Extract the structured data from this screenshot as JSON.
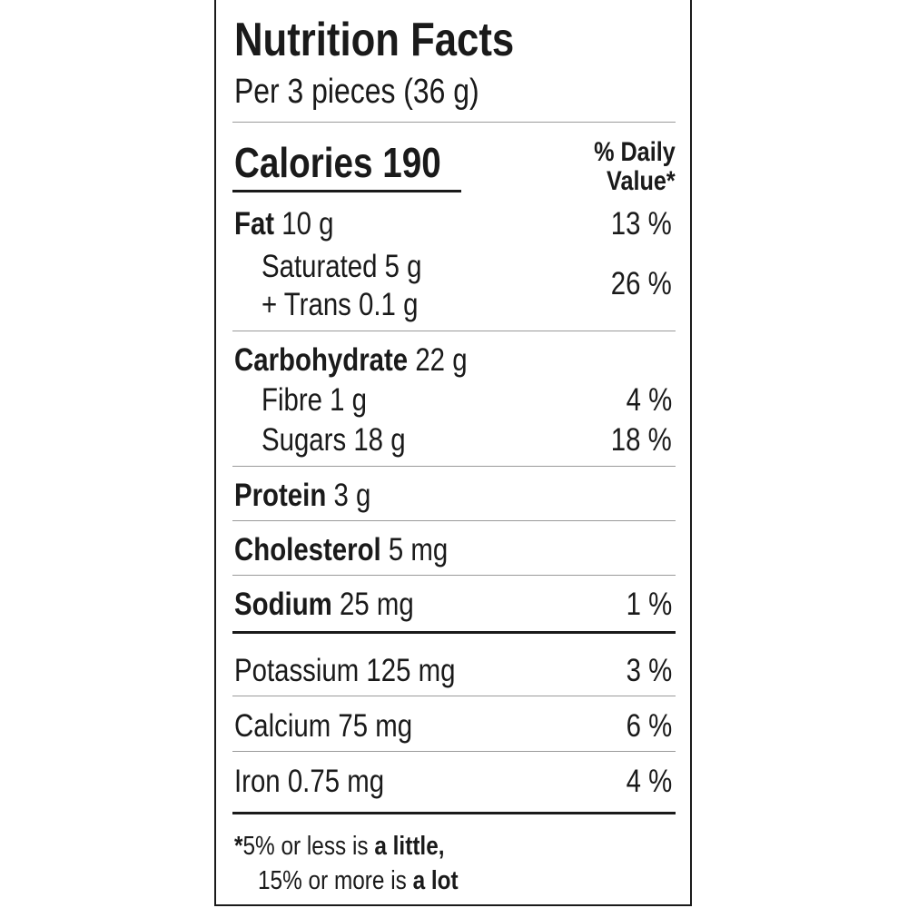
{
  "label": {
    "title": "Nutrition Facts",
    "serving": "Per 3 pieces (36 g)",
    "calories": "Calories 190",
    "daily_value_line1": "% Daily",
    "daily_value_line2": "Value",
    "daily_value_star": "*",
    "fat": {
      "name": "Fat",
      "amount": "10 g",
      "dv": "13 %"
    },
    "saturated": {
      "text": "Saturated 5 g"
    },
    "trans": {
      "text": "+ Trans 0.1 g"
    },
    "sat_trans_dv": "26 %",
    "carbohydrate": {
      "name": "Carbohydrate",
      "amount": "22 g"
    },
    "fibre": {
      "text": "Fibre 1 g",
      "dv": "4 %"
    },
    "sugars": {
      "text": "Sugars 18 g",
      "dv": "18 %"
    },
    "protein": {
      "name": "Protein",
      "amount": "3 g"
    },
    "cholesterol": {
      "name": "Cholesterol",
      "amount": "5 mg"
    },
    "sodium": {
      "name": "Sodium",
      "amount": "25 mg",
      "dv": "1 %"
    },
    "potassium": {
      "text": "Potassium 125 mg",
      "dv": "3 %"
    },
    "calcium": {
      "text": "Calcium 75 mg",
      "dv": "6 %"
    },
    "iron": {
      "text": "Iron 0.75 mg",
      "dv": "4 %"
    },
    "footnote": {
      "star": "*",
      "line1_pre": "5% or less is ",
      "line1_bold": "a little",
      "line1_post": ",",
      "line2_pre": "15% or more is ",
      "line2_bold": "a lot"
    }
  }
}
